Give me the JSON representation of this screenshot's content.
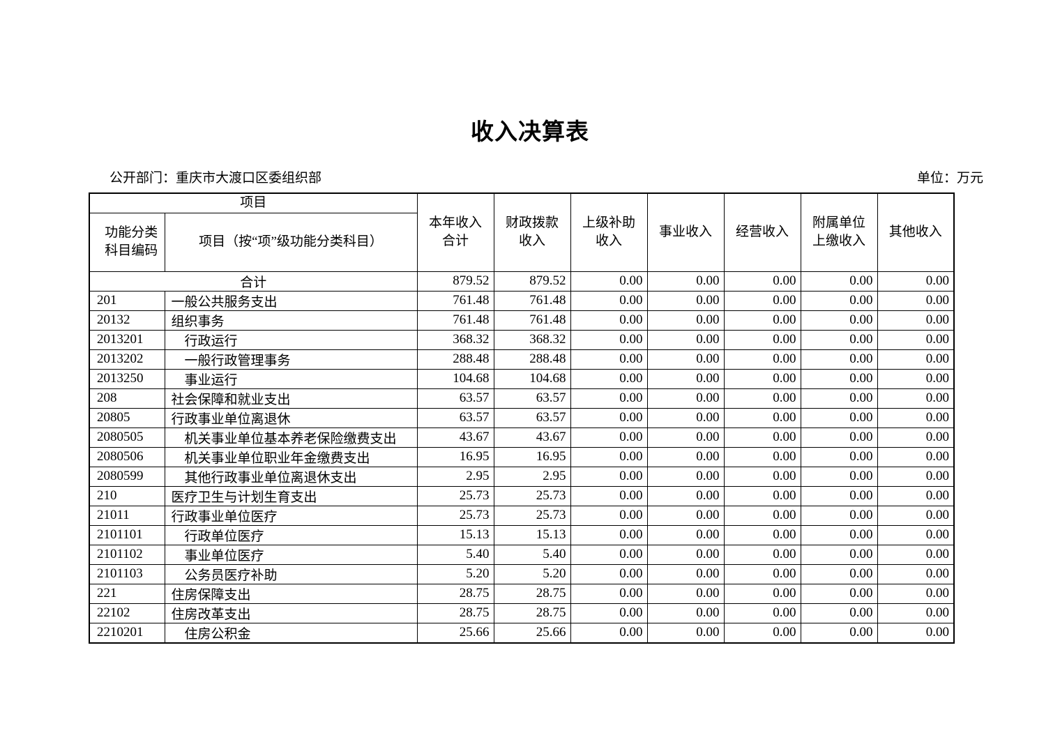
{
  "page": {
    "title": "收入决算表",
    "department": "公开部门：重庆市大渡口区委组织部",
    "unit": "单位：万元"
  },
  "table": {
    "header": {
      "group": "项目",
      "code_col": "功能分类\n科目编码",
      "item_col": "项目（按“项”级功能分类科目）",
      "value_cols": [
        "本年收入\n合计",
        "财政拨款\n收入",
        "上级补助\n收入",
        "事业收入",
        "经营收入",
        "附属单位\n上缴收入",
        "其他收入"
      ]
    },
    "rows": [
      {
        "code": "",
        "item": "合计",
        "total": true,
        "values": [
          "879.52",
          "879.52",
          "0.00",
          "0.00",
          "0.00",
          "0.00",
          "0.00"
        ]
      },
      {
        "code": "201",
        "item": "一般公共服务支出",
        "values": [
          "761.48",
          "761.48",
          "0.00",
          "0.00",
          "0.00",
          "0.00",
          "0.00"
        ]
      },
      {
        "code": "20132",
        "item": "组织事务",
        "values": [
          "761.48",
          "761.48",
          "0.00",
          "0.00",
          "0.00",
          "0.00",
          "0.00"
        ]
      },
      {
        "code": "2013201",
        "item": "行政运行",
        "indent": true,
        "values": [
          "368.32",
          "368.32",
          "0.00",
          "0.00",
          "0.00",
          "0.00",
          "0.00"
        ]
      },
      {
        "code": "2013202",
        "item": "一般行政管理事务",
        "indent": true,
        "values": [
          "288.48",
          "288.48",
          "0.00",
          "0.00",
          "0.00",
          "0.00",
          "0.00"
        ]
      },
      {
        "code": "2013250",
        "item": "事业运行",
        "indent": true,
        "values": [
          "104.68",
          "104.68",
          "0.00",
          "0.00",
          "0.00",
          "0.00",
          "0.00"
        ]
      },
      {
        "code": "208",
        "item": "社会保障和就业支出",
        "values": [
          "63.57",
          "63.57",
          "0.00",
          "0.00",
          "0.00",
          "0.00",
          "0.00"
        ]
      },
      {
        "code": "20805",
        "item": "行政事业单位离退休",
        "values": [
          "63.57",
          "63.57",
          "0.00",
          "0.00",
          "0.00",
          "0.00",
          "0.00"
        ]
      },
      {
        "code": "2080505",
        "item": "机关事业单位基本养老保险缴费支出",
        "indent": true,
        "values": [
          "43.67",
          "43.67",
          "0.00",
          "0.00",
          "0.00",
          "0.00",
          "0.00"
        ]
      },
      {
        "code": "2080506",
        "item": "机关事业单位职业年金缴费支出",
        "indent": true,
        "values": [
          "16.95",
          "16.95",
          "0.00",
          "0.00",
          "0.00",
          "0.00",
          "0.00"
        ]
      },
      {
        "code": "2080599",
        "item": "其他行政事业单位离退休支出",
        "indent": true,
        "values": [
          "2.95",
          "2.95",
          "0.00",
          "0.00",
          "0.00",
          "0.00",
          "0.00"
        ]
      },
      {
        "code": "210",
        "item": "医疗卫生与计划生育支出",
        "values": [
          "25.73",
          "25.73",
          "0.00",
          "0.00",
          "0.00",
          "0.00",
          "0.00"
        ]
      },
      {
        "code": "21011",
        "item": "行政事业单位医疗",
        "values": [
          "25.73",
          "25.73",
          "0.00",
          "0.00",
          "0.00",
          "0.00",
          "0.00"
        ]
      },
      {
        "code": "2101101",
        "item": "行政单位医疗",
        "indent": true,
        "values": [
          "15.13",
          "15.13",
          "0.00",
          "0.00",
          "0.00",
          "0.00",
          "0.00"
        ]
      },
      {
        "code": "2101102",
        "item": "事业单位医疗",
        "indent": true,
        "values": [
          "5.40",
          "5.40",
          "0.00",
          "0.00",
          "0.00",
          "0.00",
          "0.00"
        ]
      },
      {
        "code": "2101103",
        "item": "公务员医疗补助",
        "indent": true,
        "values": [
          "5.20",
          "5.20",
          "0.00",
          "0.00",
          "0.00",
          "0.00",
          "0.00"
        ]
      },
      {
        "code": "221",
        "item": "住房保障支出",
        "values": [
          "28.75",
          "28.75",
          "0.00",
          "0.00",
          "0.00",
          "0.00",
          "0.00"
        ]
      },
      {
        "code": "22102",
        "item": "住房改革支出",
        "values": [
          "28.75",
          "28.75",
          "0.00",
          "0.00",
          "0.00",
          "0.00",
          "0.00"
        ]
      },
      {
        "code": "2210201",
        "item": "住房公积金",
        "indent": true,
        "values": [
          "25.66",
          "25.66",
          "0.00",
          "0.00",
          "0.00",
          "0.00",
          "0.00"
        ]
      }
    ]
  }
}
